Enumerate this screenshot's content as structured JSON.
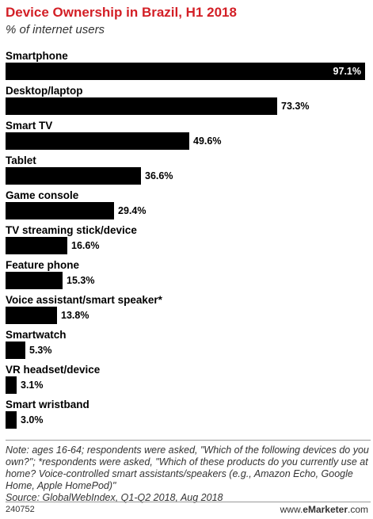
{
  "header": {
    "title": "Device Ownership in Brazil, H1 2018",
    "subtitle": "% of internet users"
  },
  "chart_data": {
    "type": "bar",
    "orientation": "horizontal",
    "title": "Device Ownership in Brazil, H1 2018",
    "subtitle": "% of internet users",
    "categories": [
      "Smartphone",
      "Desktop/laptop",
      "Smart TV",
      "Tablet",
      "Game console",
      "TV streaming stick/device",
      "Feature phone",
      "Voice assistant/smart speaker*",
      "Smartwatch",
      "VR headset/device",
      "Smart wristband"
    ],
    "values": [
      97.1,
      73.3,
      49.6,
      36.6,
      29.4,
      16.6,
      15.3,
      13.8,
      5.3,
      3.1,
      3.0
    ],
    "value_labels": [
      "97.1%",
      "73.3%",
      "49.6%",
      "36.6%",
      "29.4%",
      "16.6%",
      "15.3%",
      "13.8%",
      "5.3%",
      "3.1%",
      "3.0%"
    ],
    "bar_color": "#000000",
    "title_color": "#d31f26"
  },
  "footer": {
    "note_line1": "Note: ages 16-64; respondents were asked, \"Which of the following devices do you own?\"; *respondents were asked, \"Which of these products do you currently use at home? Voice-controlled smart assistants/speakers (e.g., Amazon Echo, Google Home, Apple HomePod)\"",
    "source": "Source: GlobalWebIndex, Q1-Q2 2018, Aug 2018",
    "chart_id": "240752",
    "brand_prefix": "www.",
    "brand_name": "eMarketer",
    "brand_suffix": ".com"
  }
}
